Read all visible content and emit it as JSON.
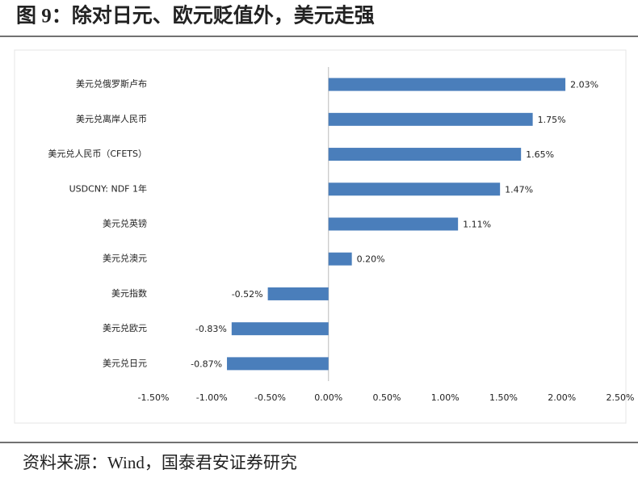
{
  "chart_data": {
    "type": "hbar",
    "title": "图 9：除对日元、欧元贬值外，美元走强",
    "categories": [
      "美元兑俄罗斯卢布",
      "美元兑离岸人民币",
      "美元兑人民币（CFETS）",
      "USDCNY: NDF 1年",
      "美元兑英镑",
      "美元兑澳元",
      "美元指数",
      "美元兑欧元",
      "美元兑日元"
    ],
    "values": [
      2.03,
      1.75,
      1.65,
      1.47,
      1.11,
      0.2,
      -0.52,
      -0.83,
      -0.87
    ],
    "value_labels": [
      "2.03%",
      "1.75%",
      "1.65%",
      "1.47%",
      "1.11%",
      "0.20%",
      "-0.52%",
      "-0.83%",
      "-0.87%"
    ],
    "color": "#4a7ebb",
    "xlim": [
      -1.5,
      2.5
    ],
    "xticks": [
      {
        "value": -1.5,
        "label": "-1.50%"
      },
      {
        "value": -1.0,
        "label": "-1.00%"
      },
      {
        "value": -0.5,
        "label": "-0.50%"
      },
      {
        "value": 0,
        "label": "0.00%"
      },
      {
        "value": 0.5,
        "label": "0.50%"
      },
      {
        "value": 1.0,
        "label": "1.00%"
      },
      {
        "value": 1.5,
        "label": "1.50%"
      },
      {
        "value": 2.0,
        "label": "2.00%"
      },
      {
        "value": 2.5,
        "label": "2.50%"
      }
    ],
    "source": "资料来源：Wind，国泰君安证券研究"
  }
}
